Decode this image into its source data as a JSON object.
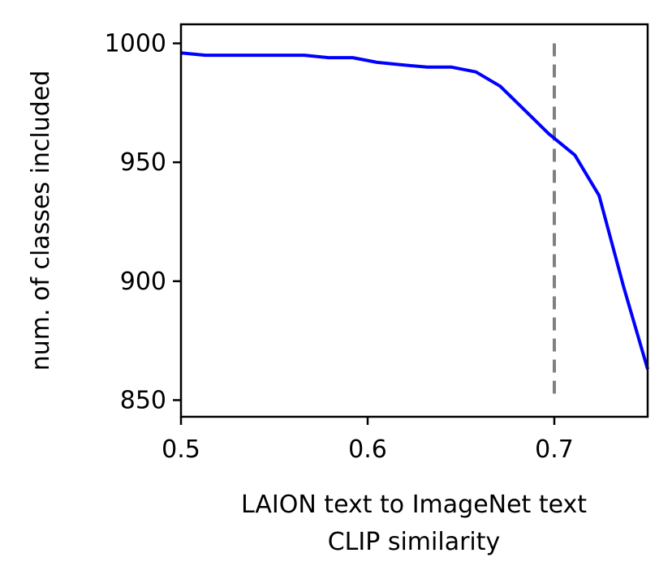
{
  "chart_data": {
    "type": "line",
    "title": "",
    "xlabel": [
      "LAION text to ImageNet text",
      "CLIP similarity"
    ],
    "ylabel": "num. of classes included",
    "xlim": [
      0.5,
      0.75
    ],
    "ylim": [
      843,
      1008
    ],
    "xticks": [
      0.5,
      0.6,
      0.7
    ],
    "xtick_labels": [
      "0.5",
      "0.6",
      "0.7"
    ],
    "yticks": [
      850,
      900,
      950,
      1000
    ],
    "ytick_labels": [
      "850",
      "900",
      "950",
      "1000"
    ],
    "grid": false,
    "legend": "none",
    "series": [
      {
        "color": "#0000ff",
        "x": [
          0.5,
          0.513,
          0.526,
          0.539,
          0.552,
          0.566,
          0.579,
          0.592,
          0.605,
          0.618,
          0.632,
          0.645,
          0.658,
          0.671,
          0.684,
          0.697,
          0.711,
          0.724,
          0.737,
          0.75
        ],
        "y": [
          996,
          995,
          995,
          995,
          995,
          995,
          994,
          994,
          992,
          991,
          990,
          990,
          988,
          982,
          972,
          962,
          953,
          936,
          898,
          863
        ]
      }
    ],
    "annotations": [
      {
        "type": "vline",
        "x": 0.7,
        "y_range": [
          850,
          1000
        ],
        "color": "#808080",
        "style": "dashed"
      }
    ]
  }
}
